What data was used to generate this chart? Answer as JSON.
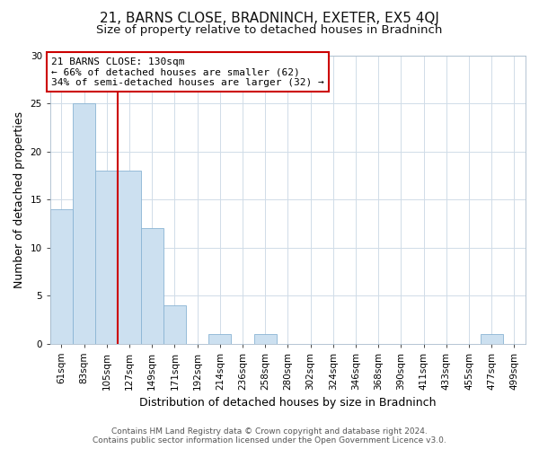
{
  "title": "21, BARNS CLOSE, BRADNINCH, EXETER, EX5 4QJ",
  "subtitle": "Size of property relative to detached houses in Bradninch",
  "xlabel": "Distribution of detached houses by size in Bradninch",
  "ylabel": "Number of detached properties",
  "footer_line1": "Contains HM Land Registry data © Crown copyright and database right 2024.",
  "footer_line2": "Contains public sector information licensed under the Open Government Licence v3.0.",
  "bin_labels": [
    "61sqm",
    "83sqm",
    "105sqm",
    "127sqm",
    "149sqm",
    "171sqm",
    "192sqm",
    "214sqm",
    "236sqm",
    "258sqm",
    "280sqm",
    "302sqm",
    "324sqm",
    "346sqm",
    "368sqm",
    "390sqm",
    "411sqm",
    "433sqm",
    "455sqm",
    "477sqm",
    "499sqm"
  ],
  "bar_values": [
    14,
    25,
    18,
    18,
    12,
    4,
    0,
    1,
    0,
    1,
    0,
    0,
    0,
    0,
    0,
    0,
    0,
    0,
    0,
    1,
    0
  ],
  "bar_color": "#cce0f0",
  "bar_edge_color": "#8ab4d4",
  "subject_line_color": "#cc0000",
  "annotation_title": "21 BARNS CLOSE: 130sqm",
  "annotation_line1": "← 66% of detached houses are smaller (62)",
  "annotation_line2": "34% of semi-detached houses are larger (32) →",
  "annotation_box_color": "#cc0000",
  "ylim": [
    0,
    30
  ],
  "yticks": [
    0,
    5,
    10,
    15,
    20,
    25,
    30
  ],
  "background_color": "#ffffff",
  "plot_bg_color": "#ffffff",
  "grid_color": "#d0dce8",
  "title_fontsize": 11,
  "subtitle_fontsize": 9.5,
  "axis_label_fontsize": 9,
  "tick_fontsize": 7.5,
  "annotation_fontsize": 8,
  "footer_fontsize": 6.5
}
